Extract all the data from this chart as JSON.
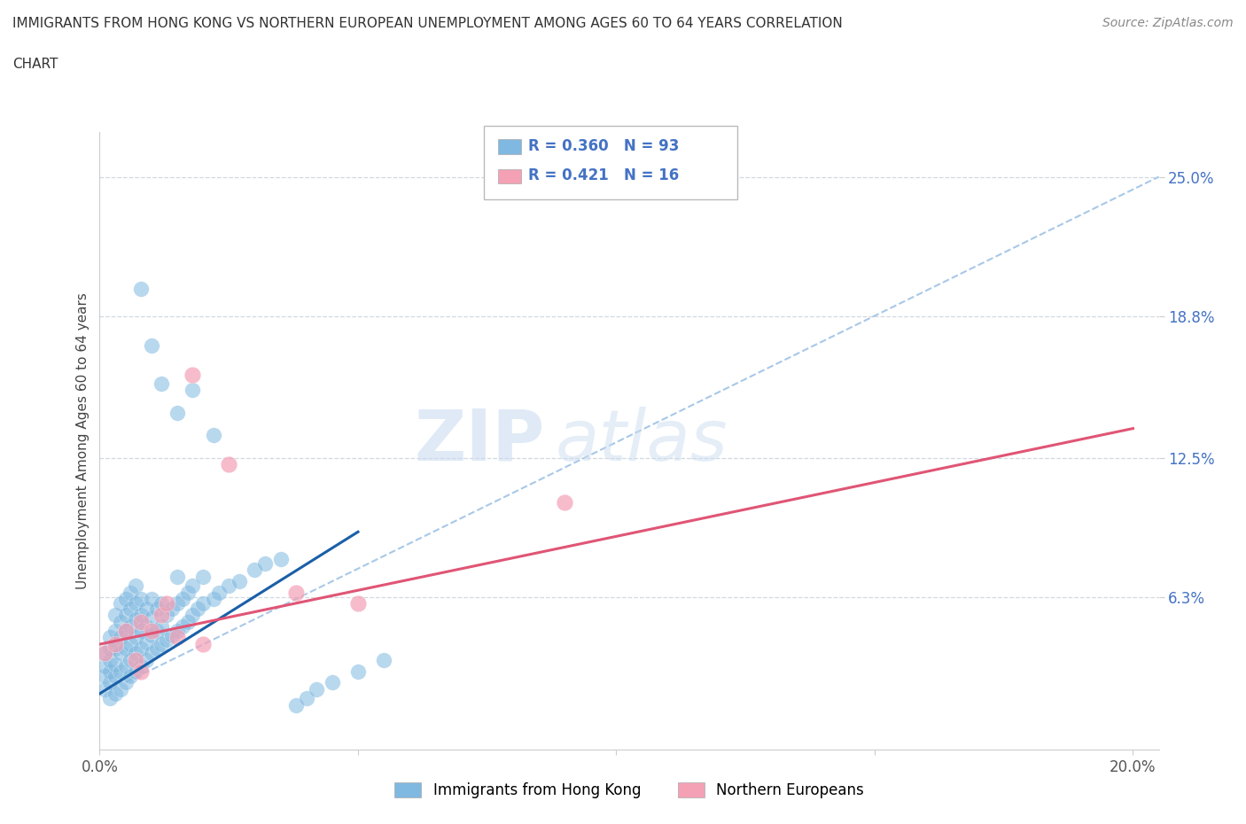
{
  "title_line1": "IMMIGRANTS FROM HONG KONG VS NORTHERN EUROPEAN UNEMPLOYMENT AMONG AGES 60 TO 64 YEARS CORRELATION",
  "title_line2": "CHART",
  "source": "Source: ZipAtlas.com",
  "ylabel": "Unemployment Among Ages 60 to 64 years",
  "xlim": [
    0.0,
    0.205
  ],
  "ylim": [
    -0.005,
    0.27
  ],
  "xticks": [
    0.0,
    0.05,
    0.1,
    0.15,
    0.2
  ],
  "xticklabels": [
    "0.0%",
    "",
    "",
    "",
    "20.0%"
  ],
  "ytick_positions": [
    0.063,
    0.125,
    0.188,
    0.25
  ],
  "ytick_labels": [
    "6.3%",
    "12.5%",
    "18.8%",
    "25.0%"
  ],
  "watermark_zip": "ZIP",
  "watermark_atlas": "atlas",
  "color_blue": "#7fb8e0",
  "color_pink": "#f4a0b5",
  "color_blue_line": "#1a5fa8",
  "color_pink_line": "#e05575",
  "color_dashed_line": "#a8c8e8",
  "grid_color": "#d0d8e0",
  "blue_scatter": [
    [
      0.001,
      0.022
    ],
    [
      0.001,
      0.028
    ],
    [
      0.001,
      0.032
    ],
    [
      0.001,
      0.038
    ],
    [
      0.002,
      0.018
    ],
    [
      0.002,
      0.025
    ],
    [
      0.002,
      0.03
    ],
    [
      0.002,
      0.035
    ],
    [
      0.002,
      0.04
    ],
    [
      0.002,
      0.045
    ],
    [
      0.003,
      0.02
    ],
    [
      0.003,
      0.028
    ],
    [
      0.003,
      0.033
    ],
    [
      0.003,
      0.04
    ],
    [
      0.003,
      0.048
    ],
    [
      0.003,
      0.055
    ],
    [
      0.004,
      0.022
    ],
    [
      0.004,
      0.03
    ],
    [
      0.004,
      0.038
    ],
    [
      0.004,
      0.045
    ],
    [
      0.004,
      0.052
    ],
    [
      0.004,
      0.06
    ],
    [
      0.005,
      0.025
    ],
    [
      0.005,
      0.032
    ],
    [
      0.005,
      0.04
    ],
    [
      0.005,
      0.048
    ],
    [
      0.005,
      0.055
    ],
    [
      0.005,
      0.062
    ],
    [
      0.006,
      0.028
    ],
    [
      0.006,
      0.035
    ],
    [
      0.006,
      0.042
    ],
    [
      0.006,
      0.05
    ],
    [
      0.006,
      0.058
    ],
    [
      0.006,
      0.065
    ],
    [
      0.007,
      0.03
    ],
    [
      0.007,
      0.038
    ],
    [
      0.007,
      0.045
    ],
    [
      0.007,
      0.053
    ],
    [
      0.007,
      0.06
    ],
    [
      0.007,
      0.068
    ],
    [
      0.008,
      0.032
    ],
    [
      0.008,
      0.04
    ],
    [
      0.008,
      0.048
    ],
    [
      0.008,
      0.055
    ],
    [
      0.008,
      0.062
    ],
    [
      0.009,
      0.035
    ],
    [
      0.009,
      0.043
    ],
    [
      0.009,
      0.05
    ],
    [
      0.009,
      0.058
    ],
    [
      0.01,
      0.038
    ],
    [
      0.01,
      0.046
    ],
    [
      0.01,
      0.054
    ],
    [
      0.01,
      0.062
    ],
    [
      0.011,
      0.04
    ],
    [
      0.011,
      0.048
    ],
    [
      0.011,
      0.058
    ],
    [
      0.012,
      0.042
    ],
    [
      0.012,
      0.05
    ],
    [
      0.012,
      0.06
    ],
    [
      0.013,
      0.044
    ],
    [
      0.013,
      0.055
    ],
    [
      0.014,
      0.046
    ],
    [
      0.014,
      0.058
    ],
    [
      0.015,
      0.048
    ],
    [
      0.015,
      0.06
    ],
    [
      0.015,
      0.072
    ],
    [
      0.016,
      0.05
    ],
    [
      0.016,
      0.062
    ],
    [
      0.017,
      0.052
    ],
    [
      0.017,
      0.065
    ],
    [
      0.018,
      0.055
    ],
    [
      0.018,
      0.068
    ],
    [
      0.019,
      0.058
    ],
    [
      0.02,
      0.06
    ],
    [
      0.02,
      0.072
    ],
    [
      0.022,
      0.062
    ],
    [
      0.023,
      0.065
    ],
    [
      0.025,
      0.068
    ],
    [
      0.027,
      0.07
    ],
    [
      0.03,
      0.075
    ],
    [
      0.032,
      0.078
    ],
    [
      0.035,
      0.08
    ],
    [
      0.038,
      0.015
    ],
    [
      0.04,
      0.018
    ],
    [
      0.042,
      0.022
    ],
    [
      0.045,
      0.025
    ],
    [
      0.05,
      0.03
    ],
    [
      0.055,
      0.035
    ],
    [
      0.008,
      0.2
    ],
    [
      0.012,
      0.158
    ],
    [
      0.018,
      0.155
    ],
    [
      0.01,
      0.175
    ],
    [
      0.015,
      0.145
    ],
    [
      0.022,
      0.135
    ]
  ],
  "pink_scatter": [
    [
      0.001,
      0.038
    ],
    [
      0.003,
      0.042
    ],
    [
      0.005,
      0.048
    ],
    [
      0.007,
      0.035
    ],
    [
      0.008,
      0.052
    ],
    [
      0.01,
      0.048
    ],
    [
      0.012,
      0.055
    ],
    [
      0.013,
      0.06
    ],
    [
      0.015,
      0.045
    ],
    [
      0.018,
      0.162
    ],
    [
      0.025,
      0.122
    ],
    [
      0.038,
      0.065
    ],
    [
      0.05,
      0.06
    ],
    [
      0.09,
      0.105
    ],
    [
      0.008,
      0.03
    ],
    [
      0.02,
      0.042
    ]
  ],
  "blue_line_x": [
    0.0,
    0.05
  ],
  "blue_line_y": [
    0.02,
    0.092
  ],
  "pink_line_x": [
    0.0,
    0.2
  ],
  "pink_line_y": [
    0.042,
    0.138
  ],
  "dashed_line_x": [
    0.005,
    0.205
  ],
  "dashed_line_y": [
    0.025,
    0.25
  ]
}
